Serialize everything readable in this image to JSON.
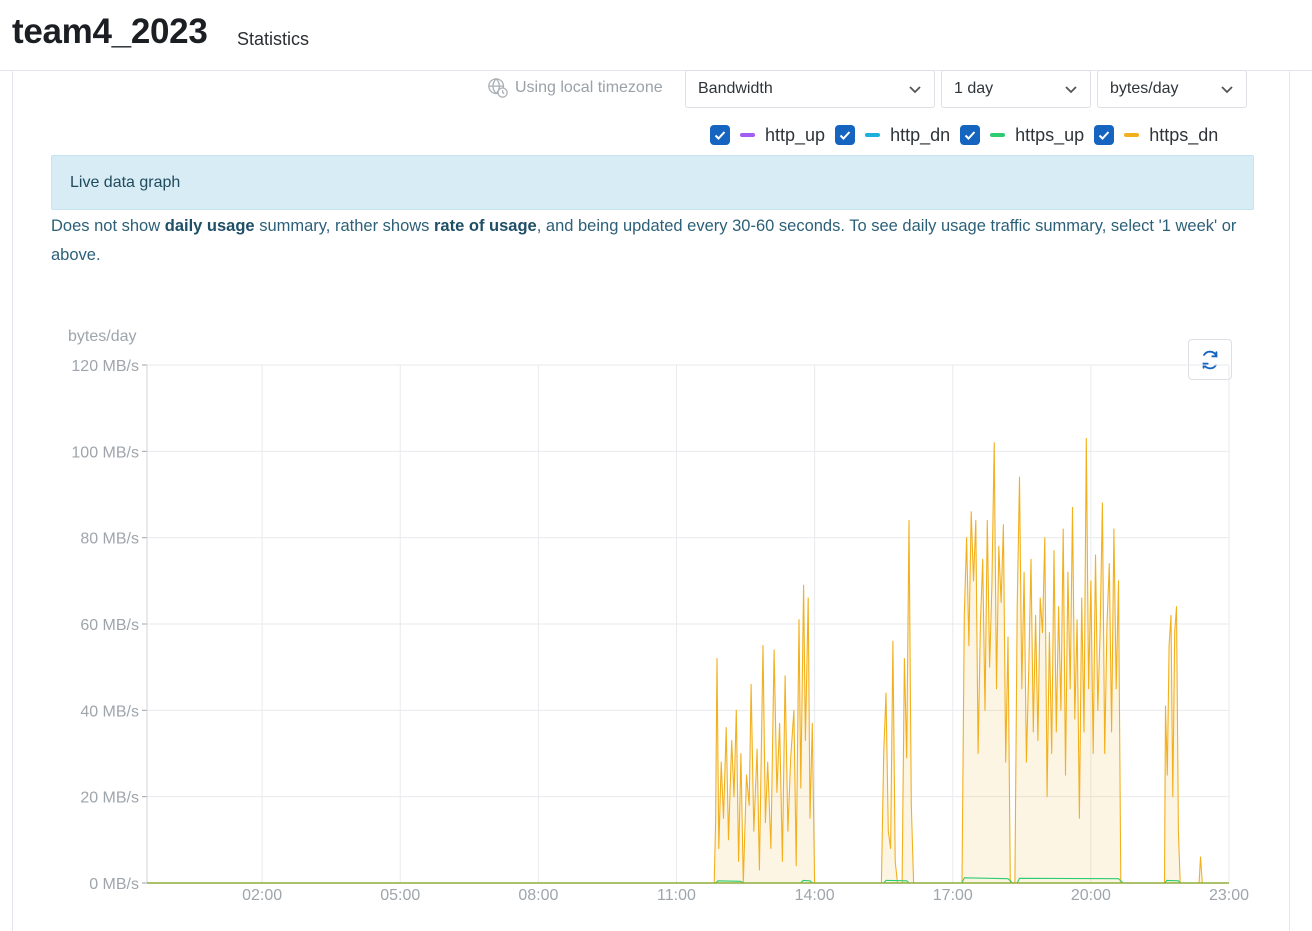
{
  "app": {
    "title": "team4_2023",
    "subtitle": "Statistics"
  },
  "controls": {
    "timezone_label": "Using local timezone",
    "timezone_icon": "globe-clock-icon",
    "metric_select": "Bandwidth",
    "range_select": "1 day",
    "unit_select": "bytes/day"
  },
  "legend": [
    {
      "label": "http_up",
      "checked": true,
      "color": "#a35cf5"
    },
    {
      "label": "http_dn",
      "checked": true,
      "color": "#1ab2dd"
    },
    {
      "label": "https_up",
      "checked": true,
      "color": "#2ecc71"
    },
    {
      "label": "https_dn",
      "checked": true,
      "color": "#f2b01e"
    }
  ],
  "alert": {
    "text": "Live data graph"
  },
  "note": {
    "p1": "Does not show ",
    "b1": "daily usage",
    "p2": " summary, rather shows ",
    "b2": "rate of usage",
    "p3": ", and being updated every 30-60 seconds. To see daily usage traffic summary, select '1 week' or above."
  },
  "refresh_icon": "refresh-icon",
  "chart_data": {
    "type": "area",
    "ylabel": "bytes/day",
    "y_ticks": [
      "120 MB/s",
      "100 MB/s",
      "80 MB/s",
      "60 MB/s",
      "40 MB/s",
      "20 MB/s",
      "0 MB/s"
    ],
    "ylim": [
      0,
      120
    ],
    "x_ticks": [
      "02:00",
      "05:00",
      "08:00",
      "11:00",
      "14:00",
      "17:00",
      "20:00",
      "23:00"
    ],
    "xlim_hours": [
      -0.5,
      23.0
    ],
    "grid": true,
    "series": [
      {
        "name": "http_up",
        "color": "#a35cf5",
        "points": [
          [
            -0.5,
            0
          ],
          [
            23,
            0
          ]
        ]
      },
      {
        "name": "http_dn",
        "color": "#1ab2dd",
        "points": [
          [
            -0.5,
            0
          ],
          [
            23,
            0
          ]
        ]
      },
      {
        "name": "https_up",
        "color": "#2ecc71",
        "points": [
          [
            -0.5,
            0
          ],
          [
            11.85,
            0
          ],
          [
            11.9,
            0.5
          ],
          [
            12.4,
            0.4
          ],
          [
            12.45,
            0
          ],
          [
            13.7,
            0
          ],
          [
            13.75,
            0.6
          ],
          [
            13.9,
            0.5
          ],
          [
            13.95,
            0
          ],
          [
            15.5,
            0
          ],
          [
            15.55,
            0.6
          ],
          [
            16.0,
            0.5
          ],
          [
            16.05,
            0
          ],
          [
            17.2,
            0
          ],
          [
            17.25,
            1.2
          ],
          [
            18.2,
            1.0
          ],
          [
            18.3,
            0
          ],
          [
            18.4,
            0
          ],
          [
            18.45,
            1.1
          ],
          [
            20.6,
            1.0
          ],
          [
            20.7,
            0
          ],
          [
            21.6,
            0
          ],
          [
            21.65,
            0.6
          ],
          [
            21.9,
            0.5
          ],
          [
            21.95,
            0
          ],
          [
            23,
            0
          ]
        ]
      },
      {
        "name": "https_dn",
        "color": "#f2b01e",
        "points": [
          [
            -0.5,
            0
          ],
          [
            11.82,
            0
          ],
          [
            11.85,
            14
          ],
          [
            11.88,
            52
          ],
          [
            11.92,
            8
          ],
          [
            11.97,
            28
          ],
          [
            12.02,
            15
          ],
          [
            12.08,
            36
          ],
          [
            12.13,
            10
          ],
          [
            12.2,
            33
          ],
          [
            12.25,
            20
          ],
          [
            12.3,
            40
          ],
          [
            12.35,
            5
          ],
          [
            12.4,
            30
          ],
          [
            12.45,
            0
          ],
          [
            12.52,
            25
          ],
          [
            12.58,
            18
          ],
          [
            12.62,
            46
          ],
          [
            12.68,
            12
          ],
          [
            12.75,
            31
          ],
          [
            12.8,
            3
          ],
          [
            12.88,
            55
          ],
          [
            12.93,
            14
          ],
          [
            12.98,
            28
          ],
          [
            13.05,
            8
          ],
          [
            13.12,
            54
          ],
          [
            13.18,
            21
          ],
          [
            13.24,
            37
          ],
          [
            13.3,
            5
          ],
          [
            13.36,
            48
          ],
          [
            13.42,
            12
          ],
          [
            13.48,
            29
          ],
          [
            13.55,
            40
          ],
          [
            13.6,
            4
          ],
          [
            13.66,
            61
          ],
          [
            13.7,
            22
          ],
          [
            13.76,
            69
          ],
          [
            13.8,
            33
          ],
          [
            13.86,
            66
          ],
          [
            13.9,
            15
          ],
          [
            13.95,
            37
          ],
          [
            14.0,
            0
          ],
          [
            15.45,
            0
          ],
          [
            15.5,
            30
          ],
          [
            15.55,
            44
          ],
          [
            15.6,
            12
          ],
          [
            15.65,
            8
          ],
          [
            15.7,
            56
          ],
          [
            15.75,
            5
          ],
          [
            15.8,
            0
          ],
          [
            15.9,
            0
          ],
          [
            15.95,
            52
          ],
          [
            16.0,
            29
          ],
          [
            16.05,
            84
          ],
          [
            16.1,
            18
          ],
          [
            16.15,
            0
          ],
          [
            17.2,
            0
          ],
          [
            17.25,
            62
          ],
          [
            17.3,
            80
          ],
          [
            17.35,
            55
          ],
          [
            17.4,
            86
          ],
          [
            17.45,
            70
          ],
          [
            17.5,
            84
          ],
          [
            17.55,
            30
          ],
          [
            17.6,
            60
          ],
          [
            17.65,
            75
          ],
          [
            17.7,
            40
          ],
          [
            17.75,
            84
          ],
          [
            17.8,
            50
          ],
          [
            17.85,
            69
          ],
          [
            17.9,
            102
          ],
          [
            17.95,
            45
          ],
          [
            18.0,
            78
          ],
          [
            18.05,
            65
          ],
          [
            18.1,
            83
          ],
          [
            18.15,
            28
          ],
          [
            18.2,
            57
          ],
          [
            18.25,
            0
          ],
          [
            18.35,
            0
          ],
          [
            18.4,
            64
          ],
          [
            18.45,
            94
          ],
          [
            18.5,
            45
          ],
          [
            18.55,
            72
          ],
          [
            18.6,
            28
          ],
          [
            18.65,
            49
          ],
          [
            18.7,
            75
          ],
          [
            18.75,
            35
          ],
          [
            18.8,
            62
          ],
          [
            18.85,
            33
          ],
          [
            18.9,
            66
          ],
          [
            18.95,
            58
          ],
          [
            19.0,
            80
          ],
          [
            19.05,
            20
          ],
          [
            19.1,
            58
          ],
          [
            19.15,
            30
          ],
          [
            19.2,
            77
          ],
          [
            19.25,
            35
          ],
          [
            19.3,
            64
          ],
          [
            19.35,
            40
          ],
          [
            19.4,
            82
          ],
          [
            19.45,
            25
          ],
          [
            19.5,
            72
          ],
          [
            19.55,
            45
          ],
          [
            19.6,
            87
          ],
          [
            19.65,
            38
          ],
          [
            19.7,
            61
          ],
          [
            19.75,
            15
          ],
          [
            19.8,
            66
          ],
          [
            19.85,
            35
          ],
          [
            19.9,
            103
          ],
          [
            19.95,
            45
          ],
          [
            20.0,
            70
          ],
          [
            20.05,
            30
          ],
          [
            20.1,
            76
          ],
          [
            20.15,
            40
          ],
          [
            20.2,
            58
          ],
          [
            20.25,
            88
          ],
          [
            20.3,
            30
          ],
          [
            20.35,
            60
          ],
          [
            20.4,
            74
          ],
          [
            20.45,
            35
          ],
          [
            20.5,
            82
          ],
          [
            20.55,
            45
          ],
          [
            20.6,
            70
          ],
          [
            20.65,
            0
          ],
          [
            21.6,
            0
          ],
          [
            21.62,
            41
          ],
          [
            21.66,
            25
          ],
          [
            21.7,
            55
          ],
          [
            21.74,
            62
          ],
          [
            21.78,
            20
          ],
          [
            21.82,
            58
          ],
          [
            21.86,
            64
          ],
          [
            21.9,
            12
          ],
          [
            21.94,
            0
          ],
          [
            22.35,
            0
          ],
          [
            22.38,
            6
          ],
          [
            22.42,
            0
          ],
          [
            23,
            0
          ]
        ]
      }
    ]
  }
}
